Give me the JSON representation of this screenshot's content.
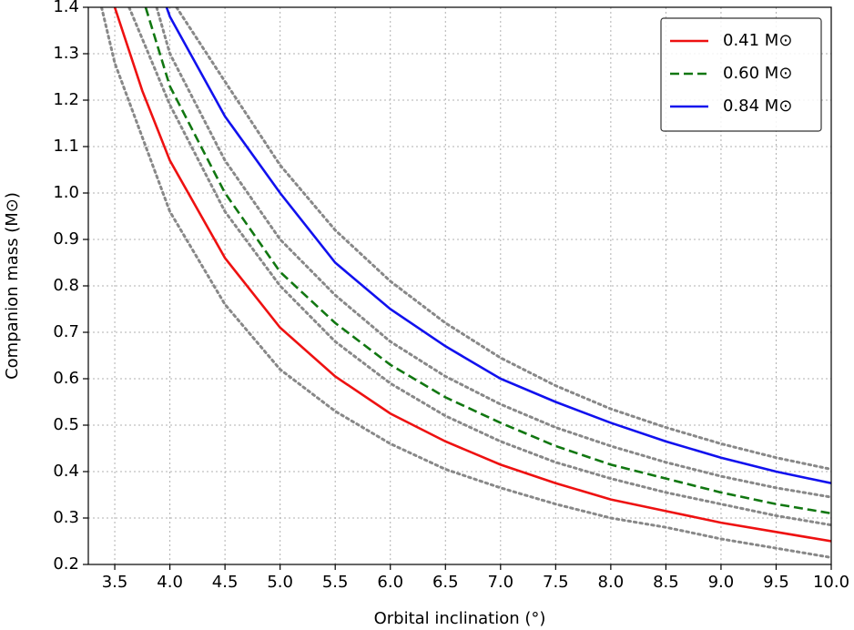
{
  "chart_data": {
    "type": "line",
    "xlabel": "Orbital inclination (°)",
    "ylabel": "Companion mass (M⊙)",
    "xlim": [
      3.26,
      10
    ],
    "ylim": [
      0.2,
      1.4
    ],
    "xticks": [
      3.5,
      {
        "value": 4,
        "label": "4.0"
      },
      4.5,
      {
        "value": 5,
        "label": "5.0"
      },
      5.5,
      {
        "value": 6,
        "label": "6.0"
      },
      6.5,
      {
        "value": 7,
        "label": "7.0"
      },
      7.5,
      {
        "value": 8,
        "label": "8.0"
      },
      8.5,
      {
        "value": 9,
        "label": "9.0"
      },
      9.5,
      {
        "value": 10,
        "label": "10.0"
      }
    ],
    "yticks": [
      0.2,
      0.3,
      0.4,
      0.5,
      0.6,
      0.7,
      0.8,
      0.9,
      {
        "value": 1,
        "label": "1.0"
      },
      1.1,
      1.2,
      1.3,
      1.4
    ],
    "grid": true,
    "legend": "upper right",
    "series": [
      {
        "color": "#888888",
        "dash": "dotted",
        "x": [
          3.38,
          3.5,
          4.0,
          4.5,
          5.0,
          5.5,
          6.0,
          6.5,
          7.0,
          7.5,
          8.0,
          8.5,
          9.0,
          9.5,
          10.0
        ],
        "values": [
          1.4,
          1.28,
          0.96,
          0.76,
          0.62,
          0.53,
          0.46,
          0.405,
          0.365,
          0.33,
          0.3,
          0.28,
          0.255,
          0.235,
          0.215
        ]
      },
      {
        "color": "#888888",
        "dash": "dotted",
        "x": [
          3.63,
          4.0,
          4.5,
          5.0,
          5.5,
          6.0,
          6.5,
          7.0,
          7.5,
          8.0,
          8.5,
          9.0,
          9.5,
          10.0
        ],
        "values": [
          1.4,
          1.19,
          0.96,
          0.8,
          0.68,
          0.59,
          0.52,
          0.465,
          0.42,
          0.385,
          0.355,
          0.33,
          0.305,
          0.285
        ]
      },
      {
        "color": "#888888",
        "dash": "dotted",
        "x": [
          3.88,
          4.0,
          4.5,
          5.0,
          5.5,
          6.0,
          6.5,
          7.0,
          7.5,
          8.0,
          8.5,
          9.0,
          9.5,
          10.0
        ],
        "values": [
          1.4,
          1.3,
          1.07,
          0.9,
          0.78,
          0.68,
          0.605,
          0.545,
          0.495,
          0.455,
          0.42,
          0.39,
          0.365,
          0.345
        ]
      },
      {
        "color": "#888888",
        "dash": "dotted",
        "x": [
          4.06,
          4.5,
          5.0,
          5.5,
          6.0,
          6.5,
          7.0,
          7.5,
          8.0,
          8.5,
          9.0,
          9.5,
          10.0
        ],
        "values": [
          1.4,
          1.24,
          1.06,
          0.92,
          0.81,
          0.72,
          0.645,
          0.585,
          0.535,
          0.495,
          0.46,
          0.43,
          0.405
        ]
      },
      {
        "name": "0.41 M⊙",
        "color": "#ee1111",
        "dash": "solid",
        "x": [
          3.5,
          3.75,
          4.0,
          4.5,
          5.0,
          5.5,
          6.0,
          6.5,
          7.0,
          7.5,
          8.0,
          8.5,
          9.0,
          9.5,
          10.0
        ],
        "values": [
          1.4,
          1.22,
          1.07,
          0.86,
          0.71,
          0.605,
          0.525,
          0.465,
          0.415,
          0.375,
          0.34,
          0.315,
          0.29,
          0.27,
          0.25
        ]
      },
      {
        "name": "0.60 M⊙",
        "color": "#117711",
        "dash": "dashed",
        "x": [
          3.78,
          4.0,
          4.5,
          5.0,
          5.5,
          6.0,
          6.5,
          7.0,
          7.5,
          8.0,
          8.5,
          9.0,
          9.5,
          10.0
        ],
        "values": [
          1.4,
          1.23,
          1.0,
          0.83,
          0.72,
          0.63,
          0.56,
          0.505,
          0.455,
          0.415,
          0.385,
          0.355,
          0.33,
          0.31
        ]
      },
      {
        "name": "0.84 M⊙",
        "color": "#1111ee",
        "dash": "solid",
        "x": [
          3.97,
          4.0,
          4.5,
          5.0,
          5.5,
          6.0,
          6.5,
          7.0,
          7.5,
          8.0,
          8.5,
          9.0,
          9.5,
          10.0
        ],
        "values": [
          1.4,
          1.38,
          1.165,
          1.0,
          0.85,
          0.75,
          0.67,
          0.6,
          0.55,
          0.505,
          0.465,
          0.43,
          0.4,
          0.375
        ]
      }
    ]
  }
}
